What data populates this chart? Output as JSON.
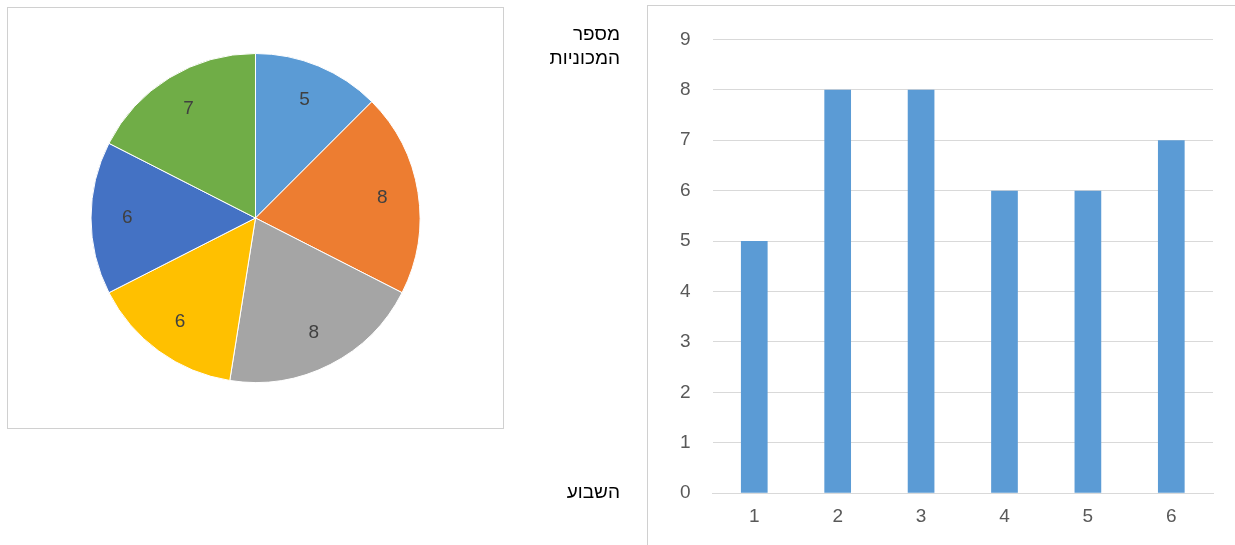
{
  "chart_data": [
    {
      "type": "pie",
      "categories": [
        null,
        null,
        null,
        null,
        null,
        null
      ],
      "values": [
        5,
        8,
        8,
        6,
        6,
        7
      ],
      "colors": [
        "#5b9bd5",
        "#ed7d31",
        "#a5a5a5",
        "#ffc000",
        "#4472c4",
        "#70ad47"
      ],
      "data_labels": true
    },
    {
      "type": "bar",
      "categories": [
        "1",
        "2",
        "3",
        "4",
        "5",
        "6"
      ],
      "values": [
        5,
        8,
        8,
        6,
        6,
        7
      ],
      "color": "#5b9bd5",
      "ylim": [
        0,
        9
      ],
      "yticks": [
        0,
        1,
        2,
        3,
        4,
        5,
        6,
        7,
        8,
        9
      ],
      "grid": "y",
      "xlabel": "השבוע",
      "ylabel": "מספר המכוניות"
    }
  ]
}
